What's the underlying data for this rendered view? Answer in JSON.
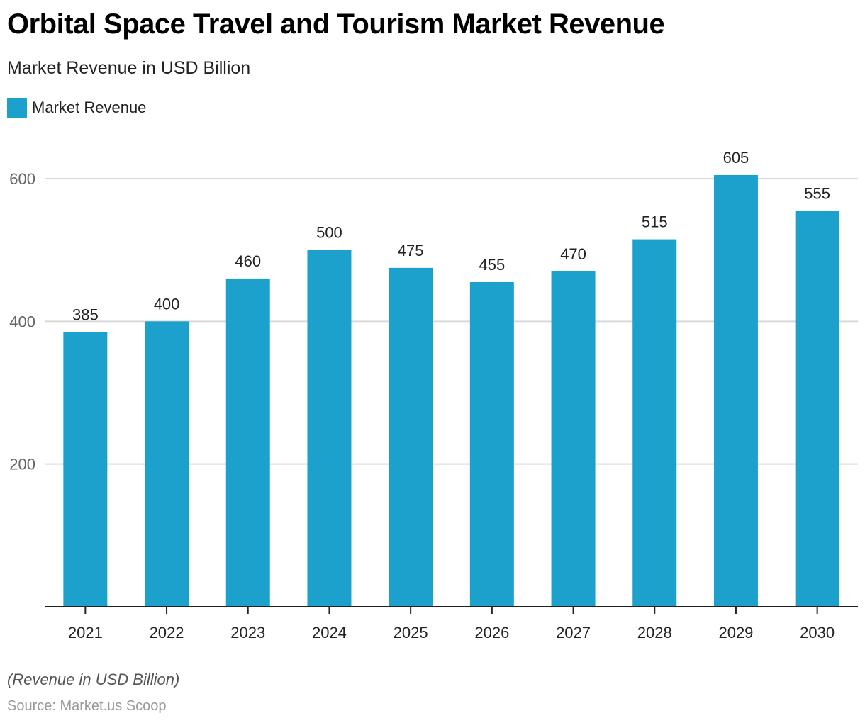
{
  "header": {
    "title": "Orbital Space Travel and Tourism Market Revenue",
    "subtitle": "Market Revenue in USD Billion"
  },
  "legend": {
    "label": "Market Revenue",
    "color": "#1ba1cc"
  },
  "footer": {
    "note": "(Revenue in USD Billion)",
    "source": "Source: Market.us Scoop"
  },
  "chart_data": {
    "type": "bar",
    "title": "Orbital Space Travel and Tourism Market Revenue",
    "subtitle": "Market Revenue in USD Billion",
    "xlabel": "",
    "ylabel": "",
    "categories": [
      "2021",
      "2022",
      "2023",
      "2024",
      "2025",
      "2026",
      "2027",
      "2028",
      "2029",
      "2030"
    ],
    "series": [
      {
        "name": "Market Revenue",
        "color": "#1ba1cc",
        "values": [
          385,
          400,
          460,
          500,
          475,
          455,
          470,
          515,
          605,
          555
        ]
      }
    ],
    "ylim": [
      0,
      600
    ],
    "yticks": [
      200,
      400,
      600
    ],
    "grid": true,
    "legend_position": "top-left",
    "data_labels": true
  }
}
